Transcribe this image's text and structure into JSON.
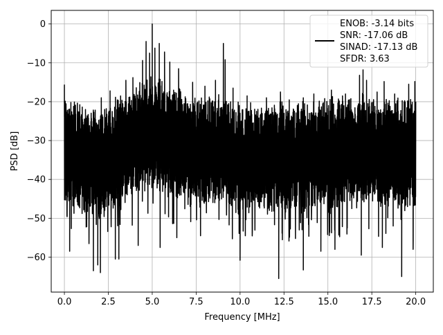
{
  "chart_data": {
    "type": "line",
    "xlabel": "Frequency [MHz]",
    "ylabel": "PSD [dB]",
    "xlim": [
      -0.75,
      21.0
    ],
    "ylim": [
      -69,
      3.5
    ],
    "xticks": [
      0.0,
      2.5,
      5.0,
      7.5,
      10.0,
      12.5,
      15.0,
      17.5,
      20.0
    ],
    "xtick_labels": [
      "0.0",
      "2.5",
      "5.0",
      "7.5",
      "10.0",
      "12.5",
      "15.0",
      "17.5",
      "20.0"
    ],
    "yticks": [
      0,
      -10,
      -20,
      -30,
      -40,
      -50,
      -60
    ],
    "ytick_labels": [
      "0",
      "−10",
      "−20",
      "−30",
      "−40",
      "−50",
      "−60"
    ],
    "grid": true,
    "legend_position": "top-right",
    "legend_lines": [
      "ENOB: -3.14 bits",
      "SNR: -17.06 dB",
      "SINAD: -17.13 dB",
      "SFDR: 3.63"
    ],
    "series": [
      {
        "color": "#000000",
        "noise_floor": [
          [
            0.0,
            -33
          ],
          [
            1.0,
            -35
          ],
          [
            2.0,
            -36
          ],
          [
            3.0,
            -33
          ],
          [
            4.0,
            -30
          ],
          [
            5.0,
            -27
          ],
          [
            6.0,
            -30
          ],
          [
            7.0,
            -32
          ],
          [
            8.0,
            -33
          ],
          [
            9.0,
            -32
          ],
          [
            10.0,
            -35
          ],
          [
            11.0,
            -35
          ],
          [
            12.0,
            -34
          ],
          [
            13.0,
            -34
          ],
          [
            14.0,
            -34
          ],
          [
            15.0,
            -33
          ],
          [
            16.0,
            -33
          ],
          [
            17.0,
            -32
          ],
          [
            18.0,
            -33
          ],
          [
            19.0,
            -33
          ],
          [
            20.0,
            -34
          ]
        ],
        "peaks": [
          [
            0.0,
            -15.7
          ],
          [
            0.05,
            -24.5
          ],
          [
            1.2,
            -22.0
          ],
          [
            2.1,
            -19.0
          ],
          [
            2.6,
            -17.2
          ],
          [
            3.5,
            -14.5
          ],
          [
            3.9,
            -13.8
          ],
          [
            4.45,
            -9.4
          ],
          [
            4.65,
            -4.5
          ],
          [
            4.85,
            -7.5
          ],
          [
            5.0,
            0.0
          ],
          [
            5.15,
            -6.2
          ],
          [
            5.4,
            -5.0
          ],
          [
            5.7,
            -7.2
          ],
          [
            6.0,
            -9.8
          ],
          [
            6.5,
            -11.5
          ],
          [
            7.3,
            -15.0
          ],
          [
            8.0,
            -16.0
          ],
          [
            8.6,
            -14.5
          ],
          [
            9.05,
            -5.0
          ],
          [
            9.15,
            -9.2
          ],
          [
            9.6,
            -16.5
          ],
          [
            10.4,
            -18.5
          ],
          [
            11.5,
            -19.0
          ],
          [
            12.3,
            -17.5
          ],
          [
            13.6,
            -19.0
          ],
          [
            14.2,
            -18.0
          ],
          [
            15.2,
            -17.0
          ],
          [
            16.0,
            -18.0
          ],
          [
            16.8,
            -13.2
          ],
          [
            17.0,
            -11.8
          ],
          [
            17.2,
            -14.5
          ],
          [
            17.8,
            -17.5
          ],
          [
            18.2,
            -14.8
          ],
          [
            18.8,
            -18.0
          ],
          [
            19.6,
            -15.5
          ],
          [
            19.95,
            -14.8
          ],
          [
            20.0,
            -20.0
          ]
        ],
        "dips": [
          [
            0.3,
            -58.5
          ],
          [
            1.65,
            -63.5
          ],
          [
            1.9,
            -62.0
          ],
          [
            2.05,
            -64.0
          ],
          [
            2.9,
            -60.5
          ],
          [
            3.1,
            -60.5
          ],
          [
            4.2,
            -57.0
          ],
          [
            5.45,
            -57.5
          ],
          [
            6.4,
            -55.0
          ],
          [
            7.75,
            -54.5
          ],
          [
            10.0,
            -60.8
          ],
          [
            12.2,
            -65.5
          ],
          [
            13.6,
            -63.3
          ],
          [
            14.6,
            -58.5
          ],
          [
            15.4,
            -58.0
          ],
          [
            16.9,
            -59.5
          ],
          [
            18.1,
            -57.5
          ],
          [
            19.2,
            -65.0
          ],
          [
            19.85,
            -58.0
          ]
        ]
      }
    ]
  }
}
